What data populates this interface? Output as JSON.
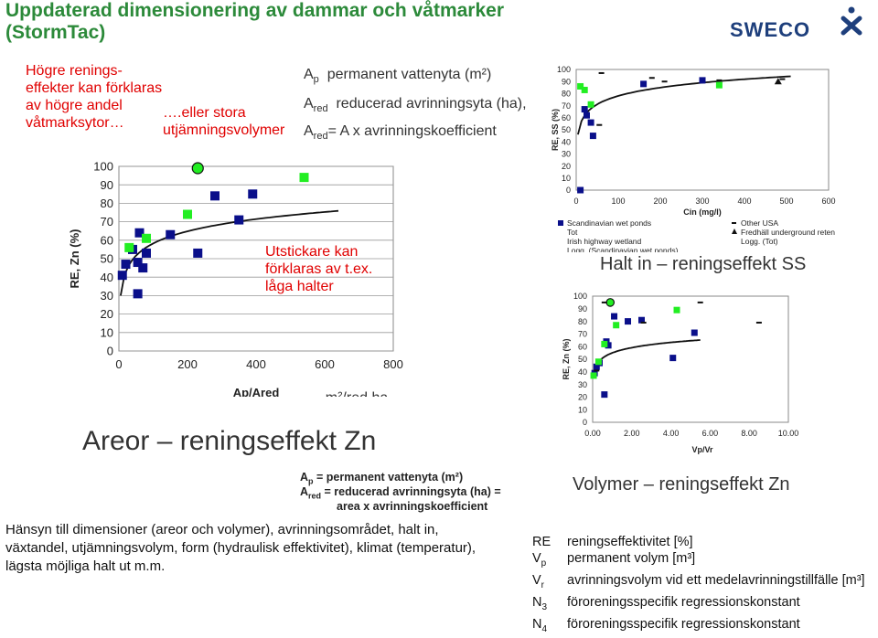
{
  "header": {
    "title": "Uppdaterad dimensionering av dammar och våtmarker (StormTac)",
    "logo_text": "SWECO"
  },
  "notes": {
    "higher_effects": "Högre renings-\neffekter kan förklaras\nav högre andel\nvåtmarksytor…",
    "storage": "….eller stora\nutjämningsvolymer",
    "steeper": "Utstickare kan\nförklaras av t.ex.\nlåga halter",
    "ap_def": "permanent vattenyta (m²)",
    "ared_def": "reducerad avrinningsyta (ha),",
    "ared_formula": "= A x avrinningskoefficient",
    "small_ap": "= permanent  vattenyta (m²)",
    "small_ared": "= reducerad avrinningsyta (ha) =",
    "small_ared2": "area x avrinningskoefficient"
  },
  "captions": {
    "areas": "Areor – reningseffekt Zn",
    "ss": "Halt in – reningseffekt SS",
    "volumes": "Volymer – reningseffekt Zn"
  },
  "footer_text": "Hänsyn till dimensioner (areor och volymer), avrinningsområdet, halt in,\nväxtandel, utjämningsvolym,    form (hydraulisk effektivitet), klimat (temperatur),\nlägsta möjliga halt ut m.m.",
  "symbols_legend": [
    {
      "sym": "RE",
      "sub": "",
      "desc": "reningseffektivitet [%]"
    },
    {
      "sym": "V",
      "sub": "p",
      "desc": "permanent volym [m³]"
    },
    {
      "sym": "V",
      "sub": "r",
      "desc": "avrinningsvolym vid ett medelavrinningstillfälle [m³]"
    },
    {
      "sym": "N",
      "sub": "3",
      "desc": "föroreningsspecifik regressionskonstant"
    },
    {
      "sym": "N",
      "sub": "4",
      "desc": "föroreningsspecifik regressionskonstant"
    }
  ],
  "chart_data": [
    {
      "type": "scatter",
      "id": "zn_area",
      "xlabel": "Ap/Ared",
      "xunit": "m²/red ha",
      "ylabel": "RE, Zn (%)",
      "xlim": [
        0,
        800
      ],
      "ylim": [
        0,
        100
      ],
      "xticks": [
        "0",
        "200",
        "400",
        "600",
        "800"
      ],
      "yticks": [
        "0",
        "10",
        "20",
        "30",
        "40",
        "50",
        "60",
        "70",
        "80",
        "90",
        "100"
      ],
      "colors": {
        "navy": "#0a0f8a",
        "green": "#22ee22"
      },
      "series": [
        {
          "color": "navy",
          "points": [
            [
              10,
              41
            ],
            [
              20,
              47
            ],
            [
              40,
              55
            ],
            [
              55,
              48
            ],
            [
              55,
              31
            ],
            [
              60,
              64
            ],
            [
              70,
              45
            ],
            [
              80,
              53
            ],
            [
              150,
              63
            ],
            [
              230,
              53
            ],
            [
              280,
              84
            ],
            [
              350,
              71
            ],
            [
              390,
              85
            ]
          ]
        },
        {
          "color": "green",
          "points": [
            [
              30,
              56
            ],
            [
              80,
              61
            ],
            [
              200,
              74
            ],
            [
              540,
              94
            ]
          ]
        },
        {
          "color": "green-circle",
          "points": [
            [
              230,
              99
            ]
          ]
        }
      ],
      "fit": {
        "a": 14.5,
        "b": 9.5
      }
    },
    {
      "type": "scatter",
      "id": "ss_conc",
      "xlabel": "Cin (mg/l)",
      "ylabel": "RE, SS (%)",
      "xlim": [
        0,
        600
      ],
      "ylim": [
        0,
        100
      ],
      "xticks": [
        "0",
        "100",
        "200",
        "300",
        "400",
        "500",
        "600"
      ],
      "yticks": [
        "0",
        "10",
        "20",
        "30",
        "40",
        "50",
        "60",
        "70",
        "80",
        "90",
        "100"
      ],
      "legend": [
        "Scandinavian wet ponds",
        "Tot",
        "Irish highway wetland",
        "Logg. (Scandinavian wet ponds)",
        "Other USA",
        "Fredhäll underground reten",
        "Logg. (Tot)"
      ],
      "series": [
        {
          "color": "navy",
          "points": [
            [
              10,
              0
            ],
            [
              20,
              67
            ],
            [
              25,
              62
            ],
            [
              35,
              56
            ],
            [
              40,
              45
            ],
            [
              160,
              88
            ],
            [
              300,
              91
            ]
          ]
        },
        {
          "color": "green",
          "points": [
            [
              10,
              86
            ],
            [
              20,
              83
            ],
            [
              35,
              71
            ],
            [
              340,
              87
            ]
          ]
        },
        {
          "color": "dash",
          "points": [
            [
              60,
              97
            ],
            [
              55,
              54
            ],
            [
              180,
              93
            ],
            [
              210,
              90
            ],
            [
              340,
              91
            ],
            [
              490,
              92
            ]
          ]
        },
        {
          "color": "triangle",
          "points": [
            [
              480,
              90
            ]
          ]
        }
      ],
      "fit": {
        "a": 32,
        "b": 10
      }
    },
    {
      "type": "scatter",
      "id": "zn_vol",
      "xlabel": "Vp/Vr",
      "ylabel": "RE, Zn (%)",
      "xlim": [
        0,
        10
      ],
      "ylim": [
        0,
        100
      ],
      "xticks": [
        "0.00",
        "2.00",
        "4.00",
        "6.00",
        "8.00",
        "10.00"
      ],
      "yticks": [
        "0",
        "10",
        "20",
        "30",
        "40",
        "50",
        "60",
        "70",
        "80",
        "90",
        "100"
      ],
      "series": [
        {
          "color": "navy",
          "points": [
            [
              0.1,
              39
            ],
            [
              0.2,
              44
            ],
            [
              0.35,
              47
            ],
            [
              0.7,
              64
            ],
            [
              0.6,
              22
            ],
            [
              0.8,
              61
            ],
            [
              1.1,
              84
            ],
            [
              1.8,
              80
            ],
            [
              2.5,
              81
            ],
            [
              4.1,
              51
            ],
            [
              5.2,
              71
            ]
          ]
        },
        {
          "color": "green",
          "points": [
            [
              0.05,
              37
            ],
            [
              0.3,
              48
            ],
            [
              0.6,
              62
            ],
            [
              1.2,
              77
            ],
            [
              4.3,
              89
            ]
          ]
        },
        {
          "color": "green-circle",
          "points": [
            [
              0.9,
              95
            ]
          ]
        },
        {
          "color": "dash",
          "points": [
            [
              0.2,
              41
            ],
            [
              0.6,
              95
            ],
            [
              2.6,
              79
            ],
            [
              5.5,
              95
            ],
            [
              8.5,
              79
            ]
          ]
        }
      ],
      "fit": {
        "a": 55,
        "b": 6
      }
    }
  ]
}
